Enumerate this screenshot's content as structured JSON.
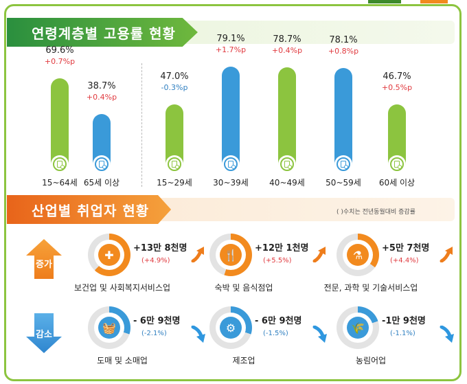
{
  "colors": {
    "green": "#8cc43f",
    "blue": "#3a9ad9",
    "orange": "#f28a1e",
    "increase": "#e0393e",
    "decrease": "#2f7fc0",
    "grey_ring": "#e3e3e3"
  },
  "section1": {
    "title": "연령계층별 고용률 현황"
  },
  "section2": {
    "title": "산업별 취업자 현황",
    "note": "( )수치는 전년동월대비 증감률"
  },
  "chart_data": {
    "type": "bar",
    "title": "연령계층별 고용률 현황",
    "unit": "%",
    "ylim": [
      0,
      100
    ],
    "categories": [
      "15~64세",
      "65세 이상",
      "15~29세",
      "30~39세",
      "40~49세",
      "50~59세",
      "60세 이상"
    ],
    "values": [
      69.6,
      38.7,
      47.0,
      79.1,
      78.7,
      78.1,
      46.7
    ],
    "value_labels": [
      "69.6%",
      "38.7%",
      "47.0%",
      "79.1%",
      "78.7%",
      "78.1%",
      "46.7%"
    ],
    "changes": [
      "+0.7%p",
      "+0.4%p",
      "-0.3%p",
      "+1.7%p",
      "+0.4%p",
      "+0.8%p",
      "+0.5%p"
    ],
    "bar_colors": [
      "#8cc43f",
      "#3a9ad9",
      "#8cc43f",
      "#3a9ad9",
      "#8cc43f",
      "#3a9ad9",
      "#8cc43f"
    ],
    "change_colors": [
      "#e0393e",
      "#e0393e",
      "#2f7fc0",
      "#e0393e",
      "#e0393e",
      "#e0393e",
      "#e0393e"
    ]
  },
  "industry": {
    "increase_label": "증가",
    "decrease_label": "감소",
    "increase": [
      {
        "name": "보건업 및 사회복지서비스업",
        "value": "+13만 8천명",
        "change": "(+4.9%)",
        "icon": "medical-kit-icon",
        "glyph": "✚",
        "share": 0.62
      },
      {
        "name": "숙박 및 음식점업",
        "value": "+12만 1천명",
        "change": "(+5.5%)",
        "icon": "dining-icon",
        "glyph": "🍴",
        "share": 0.55
      },
      {
        "name": "전문, 과학 및 기술서비스업",
        "value": "+5만 7천명",
        "change": "(+4.4%)",
        "icon": "lab-flask-icon",
        "glyph": "⚗",
        "share": 0.35
      }
    ],
    "decrease": [
      {
        "name": "도매 및 소매업",
        "value": "- 6만 9천명",
        "change": "(-2.1%)",
        "icon": "shopping-basket-icon",
        "glyph": "🧺",
        "share": 0.3
      },
      {
        "name": "제조업",
        "value": "- 6만 9천명",
        "change": "(-1.5%)",
        "icon": "gears-icon",
        "glyph": "⚙",
        "share": 0.3
      },
      {
        "name": "농림어업",
        "value": "-1만 9천명",
        "change": "(-1.1%)",
        "icon": "wheat-icon",
        "glyph": "🌾",
        "share": 0.2
      }
    ]
  }
}
